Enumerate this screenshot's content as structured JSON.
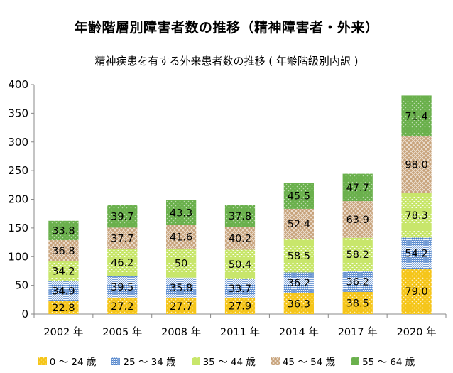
{
  "chart_data": {
    "type": "bar",
    "stacked": true,
    "title": "年齢階層別障害者数の推移（精神障害者・外来）",
    "subtitle": "精神疾患を有する外来患者数の推移 ( 年齢階級別内訳 )",
    "categories": [
      "2002 年",
      "2005 年",
      "2008 年",
      "2011 年",
      "2014 年",
      "2017 年",
      "2020 年"
    ],
    "series": [
      {
        "name": "0 ～ 24 歳",
        "values": [
          22.8,
          27.2,
          27.7,
          27.9,
          36.3,
          38.5,
          79.0
        ],
        "labels": [
          "22.8",
          "27.2",
          "27.7",
          "27.9",
          "36.3",
          "38.5",
          "79.0"
        ],
        "color": "#f5c518",
        "pattern": "dots",
        "label_color": "#000000"
      },
      {
        "name": "25 ～ 34 歳",
        "values": [
          34.9,
          39.5,
          35.8,
          33.7,
          36.2,
          36.2,
          54.2
        ],
        "labels": [
          "34.9",
          "39.5",
          "35.8",
          "33.7",
          "36.2",
          "36.2",
          "54.2"
        ],
        "color": "#4a7fc9",
        "pattern": "zigzag",
        "label_color": "#000000"
      },
      {
        "name": "35 ～ 44 歳",
        "values": [
          34.2,
          46.2,
          50,
          50.4,
          58.5,
          58.2,
          78.3
        ],
        "labels": [
          "34.2",
          "46.2",
          "50",
          "50.4",
          "58.5",
          "58.2",
          "78.3"
        ],
        "color": "#c8e66b",
        "pattern": "dashes",
        "label_color": "#000000"
      },
      {
        "name": "45 ～ 54 歳",
        "values": [
          36.8,
          37.7,
          41.6,
          40.2,
          52.4,
          63.9,
          98.0
        ],
        "labels": [
          "36.8",
          "37.7",
          "41.6",
          "40.2",
          "52.4",
          "63.9",
          "98.0"
        ],
        "color": "#c7a27a",
        "pattern": "weave",
        "label_color": "#000000"
      },
      {
        "name": "55 ～ 64 歳",
        "values": [
          33.8,
          39.7,
          43.3,
          37.8,
          45.5,
          47.7,
          71.4
        ],
        "labels": [
          "33.8",
          "39.7",
          "43.3",
          "37.8",
          "45.5",
          "47.7",
          "71.4"
        ],
        "color": "#6ab04c",
        "pattern": "dots-light",
        "label_color": "#000000"
      }
    ],
    "ylim": [
      0,
      400
    ],
    "yticks": [
      0,
      50,
      100,
      150,
      200,
      250,
      300,
      350,
      400
    ],
    "grid": false,
    "legend_position": "bottom"
  }
}
